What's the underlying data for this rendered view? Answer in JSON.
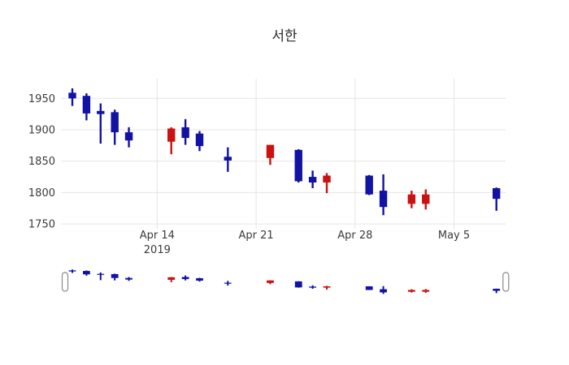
{
  "chart_data": {
    "type": "candlestick",
    "title": "서한",
    "increasing_color": "#cc1111",
    "decreasing_color": "#1212a5",
    "grid_color": "#e5e5e5",
    "tick_label_color": "#3b3b3b",
    "legend": "none",
    "rangeslider": true,
    "y_axis": {
      "ticks": [
        1750,
        1800,
        1850,
        1900,
        1950
      ],
      "range": [
        1740,
        1983
      ]
    },
    "x_axis": {
      "ticks": [
        {
          "date": "2019-04-14",
          "label": "Apr 14",
          "sublabel": "2019"
        },
        {
          "date": "2019-04-21",
          "label": "Apr 21",
          "sublabel": ""
        },
        {
          "date": "2019-04-28",
          "label": "Apr 28",
          "sublabel": ""
        },
        {
          "date": "2019-05-05",
          "label": "May 5",
          "sublabel": ""
        }
      ]
    },
    "ohlc": [
      {
        "date": "2019-04-08",
        "open": 1959,
        "high": 1966,
        "low": 1938,
        "close": 1950
      },
      {
        "date": "2019-04-09",
        "open": 1954,
        "high": 1958,
        "low": 1915,
        "close": 1926
      },
      {
        "date": "2019-04-10",
        "open": 1930,
        "high": 1942,
        "low": 1878,
        "close": 1925
      },
      {
        "date": "2019-04-11",
        "open": 1928,
        "high": 1932,
        "low": 1876,
        "close": 1896
      },
      {
        "date": "2019-04-12",
        "open": 1896,
        "high": 1904,
        "low": 1872,
        "close": 1883
      },
      {
        "date": "2019-04-15",
        "open": 1881,
        "high": 1904,
        "low": 1861,
        "close": 1902
      },
      {
        "date": "2019-04-16",
        "open": 1904,
        "high": 1917,
        "low": 1876,
        "close": 1887
      },
      {
        "date": "2019-04-17",
        "open": 1894,
        "high": 1898,
        "low": 1866,
        "close": 1874
      },
      {
        "date": "2019-04-19",
        "open": 1857,
        "high": 1872,
        "low": 1833,
        "close": 1851
      },
      {
        "date": "2019-04-22",
        "open": 1855,
        "high": 1876,
        "low": 1844,
        "close": 1876
      },
      {
        "date": "2019-04-24",
        "open": 1868,
        "high": 1869,
        "low": 1816,
        "close": 1818
      },
      {
        "date": "2019-04-25",
        "open": 1825,
        "high": 1835,
        "low": 1807,
        "close": 1816
      },
      {
        "date": "2019-04-26",
        "open": 1816,
        "high": 1831,
        "low": 1799,
        "close": 1827
      },
      {
        "date": "2019-04-29",
        "open": 1827,
        "high": 1828,
        "low": 1796,
        "close": 1797
      },
      {
        "date": "2019-04-30",
        "open": 1803,
        "high": 1829,
        "low": 1764,
        "close": 1777
      },
      {
        "date": "2019-05-02",
        "open": 1782,
        "high": 1803,
        "low": 1775,
        "close": 1797
      },
      {
        "date": "2019-05-03",
        "open": 1782,
        "high": 1805,
        "low": 1773,
        "close": 1797
      },
      {
        "date": "2019-05-08",
        "open": 1807,
        "high": 1808,
        "low": 1771,
        "close": 1790
      }
    ]
  }
}
